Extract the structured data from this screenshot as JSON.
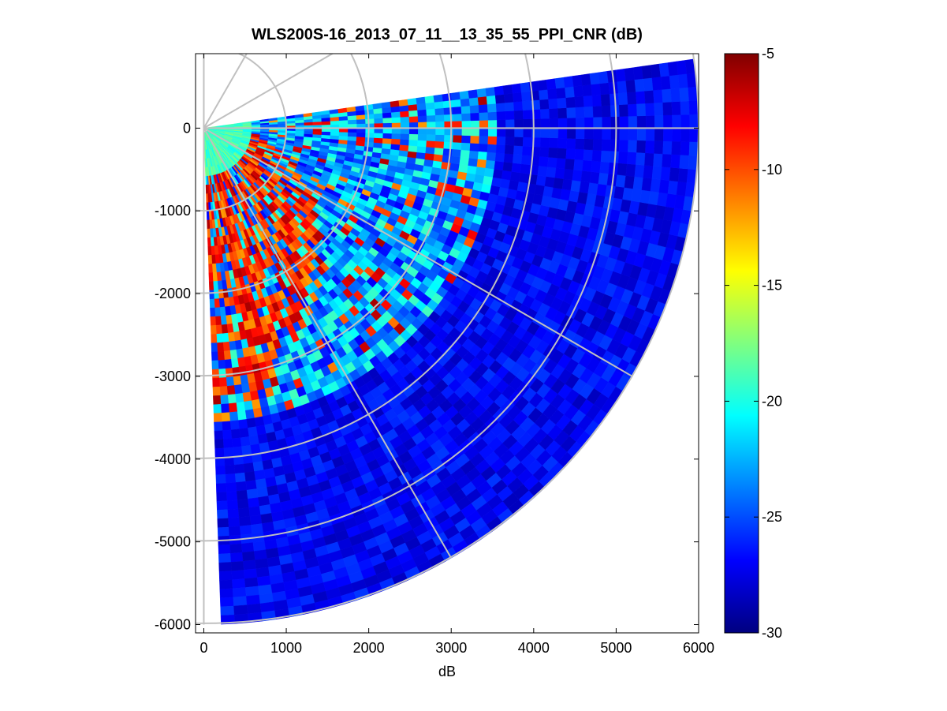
{
  "chart_data": {
    "type": "heatmap",
    "subtype": "polar-ppi",
    "title": "WLS200S-16_2013_07_11__13_35_55_PPI_CNR (dB)",
    "xlabel": "dB",
    "ylabel": "",
    "xlim": [
      -100,
      6000
    ],
    "ylim": [
      -6100,
      900
    ],
    "x_ticks": [
      0,
      1000,
      2000,
      3000,
      4000,
      5000,
      6000
    ],
    "x_tick_labels": [
      "0",
      "1000",
      "2000",
      "3000",
      "4000",
      "5000",
      "6000"
    ],
    "y_ticks": [
      0,
      -1000,
      -2000,
      -3000,
      -4000,
      -5000,
      -6000
    ],
    "y_tick_labels": [
      "0",
      "-1000",
      "-2000",
      "-3000",
      "-4000",
      "-5000",
      "-6000"
    ],
    "grid": "polar",
    "polar_grid": {
      "ring_radii_m": [
        1000,
        2000,
        3000,
        4000,
        5000,
        6000
      ],
      "spoke_angles_deg": [
        0,
        -30,
        -60,
        -90,
        30,
        60,
        90
      ]
    },
    "sector": {
      "azimuth_start_deg": -88,
      "azimuth_end_deg": 8,
      "range_min_m": 50,
      "range_max_m": 6000,
      "range_gates": 56,
      "azimuth_bins": 60
    },
    "colorbar": {
      "colormap": "jet",
      "min": -30,
      "max": -5,
      "ticks": [
        -5,
        -10,
        -15,
        -20,
        -25,
        -30
      ],
      "tick_labels": [
        "-5",
        "-10",
        "-15",
        "-20",
        "-25",
        "-30"
      ],
      "position": "right"
    },
    "field_description": {
      "near_range_m": [
        0,
        600
      ],
      "near_range_cnr_db": -19,
      "echo_band_range_m": [
        600,
        3600
      ],
      "echo_band_cnr_db": -6,
      "far_range_cnr_db": -27
    }
  }
}
